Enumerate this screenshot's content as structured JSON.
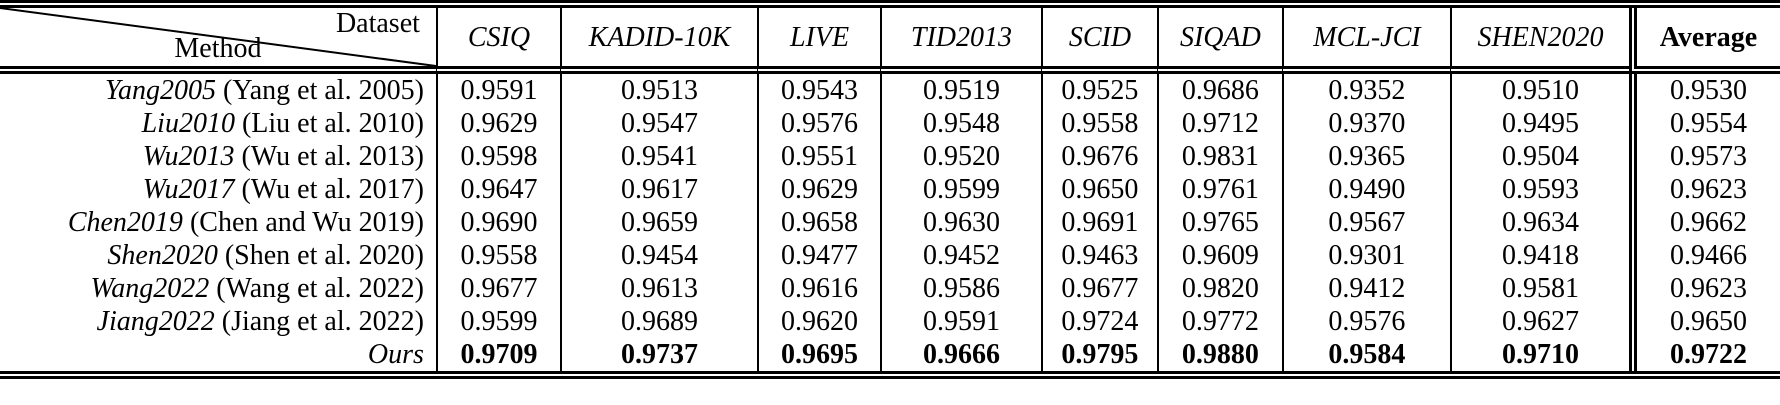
{
  "table": {
    "corner": {
      "dataset": "Dataset",
      "method": "Method"
    },
    "columns": [
      "CSIQ",
      "KADID-10K",
      "LIVE",
      "TID2013",
      "SCID",
      "SIQAD",
      "MCL-JCI",
      "SHEN2020",
      "Average"
    ],
    "rows": [
      {
        "method": "Yang2005",
        "citation": "(Yang et al. 2005)",
        "bold": false,
        "values": [
          "0.9591",
          "0.9513",
          "0.9543",
          "0.9519",
          "0.9525",
          "0.9686",
          "0.9352",
          "0.9510",
          "0.9530"
        ]
      },
      {
        "method": "Liu2010",
        "citation": "(Liu et al. 2010)",
        "bold": false,
        "values": [
          "0.9629",
          "0.9547",
          "0.9576",
          "0.9548",
          "0.9558",
          "0.9712",
          "0.9370",
          "0.9495",
          "0.9554"
        ]
      },
      {
        "method": "Wu2013",
        "citation": "(Wu et al. 2013)",
        "bold": false,
        "values": [
          "0.9598",
          "0.9541",
          "0.9551",
          "0.9520",
          "0.9676",
          "0.9831",
          "0.9365",
          "0.9504",
          "0.9573"
        ]
      },
      {
        "method": "Wu2017",
        "citation": "(Wu et al. 2017)",
        "bold": false,
        "values": [
          "0.9647",
          "0.9617",
          "0.9629",
          "0.9599",
          "0.9650",
          "0.9761",
          "0.9490",
          "0.9593",
          "0.9623"
        ]
      },
      {
        "method": "Chen2019",
        "citation": "(Chen and Wu 2019)",
        "bold": false,
        "values": [
          "0.9690",
          "0.9659",
          "0.9658",
          "0.9630",
          "0.9691",
          "0.9765",
          "0.9567",
          "0.9634",
          "0.9662"
        ]
      },
      {
        "method": "Shen2020",
        "citation": "(Shen et al. 2020)",
        "bold": false,
        "values": [
          "0.9558",
          "0.9454",
          "0.9477",
          "0.9452",
          "0.9463",
          "0.9609",
          "0.9301",
          "0.9418",
          "0.9466"
        ]
      },
      {
        "method": "Wang2022",
        "citation": "(Wang et al. 2022)",
        "bold": false,
        "values": [
          "0.9677",
          "0.9613",
          "0.9616",
          "0.9586",
          "0.9677",
          "0.9820",
          "0.9412",
          "0.9581",
          "0.9623"
        ]
      },
      {
        "method": "Jiang2022",
        "citation": "(Jiang et al. 2022)",
        "bold": false,
        "values": [
          "0.9599",
          "0.9689",
          "0.9620",
          "0.9591",
          "0.9724",
          "0.9772",
          "0.9576",
          "0.9627",
          "0.9650"
        ]
      },
      {
        "method": "Ours",
        "citation": "",
        "bold": true,
        "values": [
          "0.9709",
          "0.9737",
          "0.9695",
          "0.9666",
          "0.9795",
          "0.9880",
          "0.9584",
          "0.9710",
          "0.9722"
        ]
      }
    ],
    "column_widths_pct": [
      24.49,
      6.97,
      11.07,
      6.91,
      9.04,
      6.52,
      7.02,
      9.44,
      10.06,
      8.48
    ],
    "colors": {
      "ink": "#000000",
      "background": "#ffffff"
    }
  }
}
